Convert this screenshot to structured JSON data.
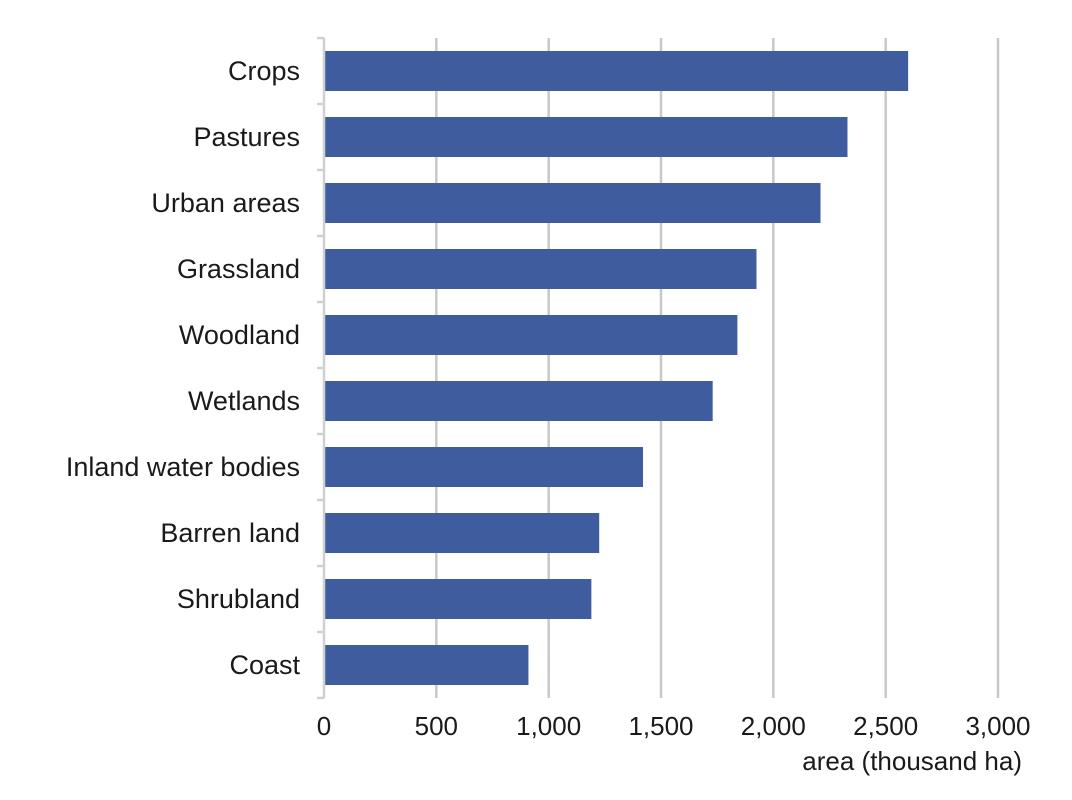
{
  "chart_data": {
    "type": "bar",
    "orientation": "horizontal",
    "categories": [
      "Crops",
      "Pastures",
      "Urban areas",
      "Grassland",
      "Woodland",
      "Wetlands",
      "Inland water bodies",
      "Barren land",
      "Shrubland",
      "Coast"
    ],
    "values": [
      2600,
      2330,
      2210,
      1925,
      1840,
      1730,
      1420,
      1225,
      1190,
      910
    ],
    "xlabel": "area (thousand ha)",
    "xlim": [
      0,
      3000
    ],
    "xticks": [
      0,
      500,
      1000,
      1500,
      2000,
      2500,
      3000
    ],
    "xtick_labels": [
      "0",
      "500",
      "1,000",
      "1,500",
      "2,000",
      "2,500",
      "3,000"
    ],
    "grid": "vertical",
    "legend": "none",
    "bar_color": "#3f5c9e",
    "grid_color": "#c8c8c8",
    "axis_color": "#d0d0d0"
  }
}
